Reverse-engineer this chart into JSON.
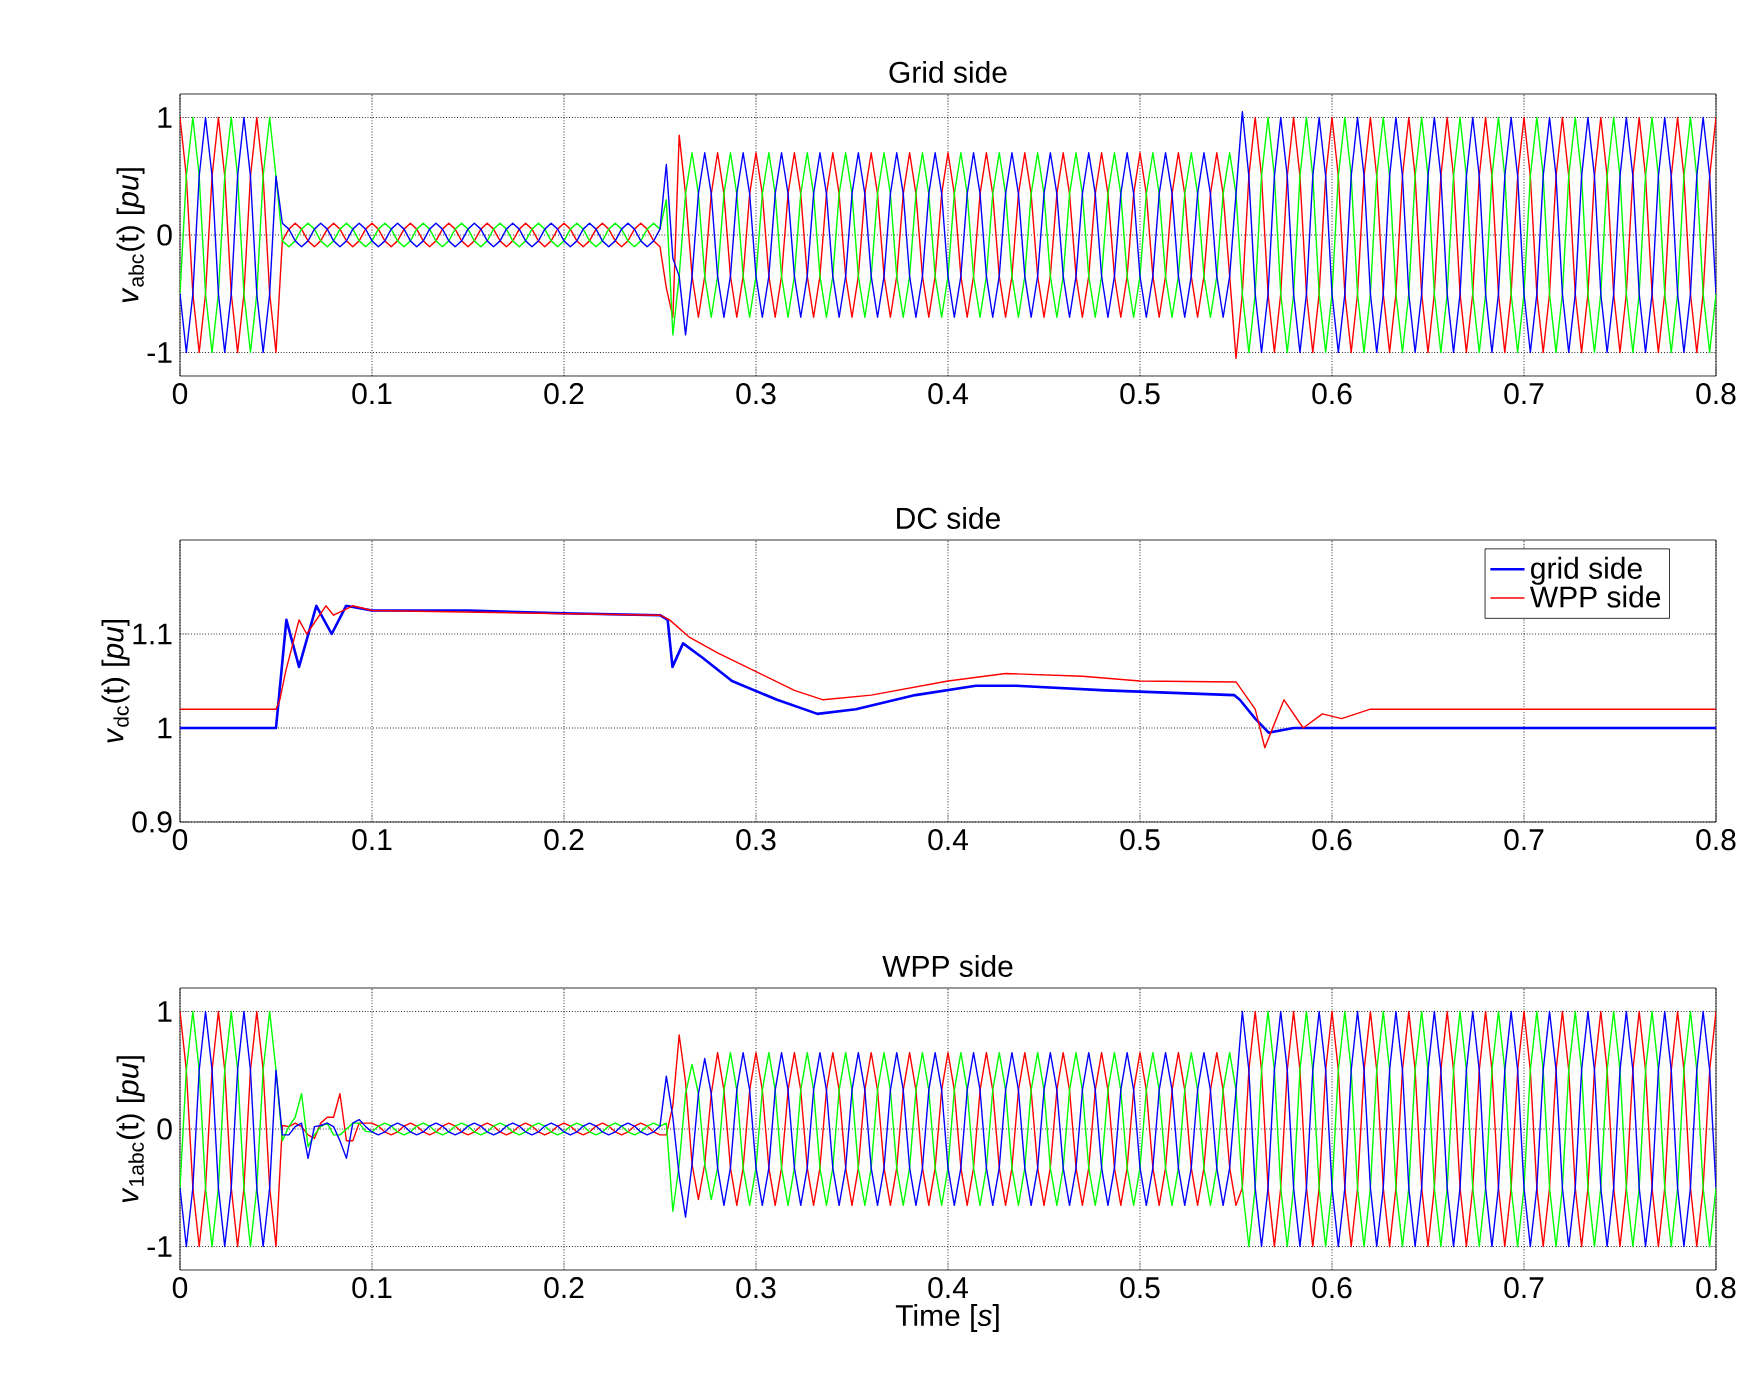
{
  "chart_data": [
    {
      "type": "line",
      "title": "Grid side",
      "ylabel": "*v*$_{abc}$(t) [*pu*]",
      "x": [
        0,
        0.0033,
        0.0067,
        0.01,
        0.0133,
        0.0167,
        0.02,
        0.0233,
        0.0267,
        0.03,
        0.0333,
        0.0367,
        0.04,
        0.0433,
        0.0467,
        0.05,
        0.0533,
        0.0567,
        0.06,
        0.0633,
        0.0667,
        0.07,
        0.0733,
        0.0767,
        0.08,
        0.0833,
        0.0867,
        0.09,
        0.0933,
        0.0967,
        0.1,
        0.1033,
        0.1067,
        0.11,
        0.1133,
        0.1167,
        0.12,
        0.1233,
        0.1267,
        0.13,
        0.1333,
        0.1367,
        0.14,
        0.1433,
        0.1467,
        0.15,
        0.1533,
        0.1567,
        0.16,
        0.1633,
        0.1667,
        0.17,
        0.1733,
        0.1767,
        0.18,
        0.1833,
        0.1867,
        0.19,
        0.1933,
        0.1967,
        0.2,
        0.2033,
        0.2067,
        0.21,
        0.2133,
        0.2167,
        0.22,
        0.2233,
        0.2267,
        0.23,
        0.2333,
        0.2367,
        0.24,
        0.2433,
        0.2467,
        0.25,
        0.2533,
        0.2567,
        0.26,
        0.2633,
        0.2667,
        0.27,
        0.2733,
        0.2767,
        0.28,
        0.2833,
        0.2867,
        0.29,
        0.2933,
        0.2967,
        0.3,
        0.3033,
        0.3067,
        0.31,
        0.3133,
        0.3167,
        0.32,
        0.3233,
        0.3267,
        0.33,
        0.3333,
        0.3367,
        0.34,
        0.3433,
        0.3467,
        0.35,
        0.3533,
        0.3567,
        0.36,
        0.3633,
        0.3667,
        0.37,
        0.3733,
        0.3767,
        0.38,
        0.3833,
        0.3867,
        0.39,
        0.3933,
        0.3967,
        0.4,
        0.4033,
        0.4067,
        0.41,
        0.4133,
        0.4167,
        0.42,
        0.4233,
        0.4267,
        0.43,
        0.4333,
        0.4367,
        0.44,
        0.4433,
        0.4467,
        0.45,
        0.4533,
        0.4567,
        0.46,
        0.4633,
        0.4667,
        0.47,
        0.4733,
        0.4767,
        0.48,
        0.4833,
        0.4867,
        0.49,
        0.4933,
        0.4967,
        0.5,
        0.5033,
        0.5067,
        0.51,
        0.5133,
        0.5167,
        0.52,
        0.5233,
        0.5267,
        0.53,
        0.5333,
        0.5367,
        0.54,
        0.5433,
        0.5467,
        0.55,
        0.5533,
        0.5567,
        0.56,
        0.5633,
        0.5667,
        0.57,
        0.5733,
        0.5767,
        0.58,
        0.5833,
        0.5867,
        0.59,
        0.5933,
        0.5967,
        0.6,
        0.6033,
        0.6067,
        0.61,
        0.6133,
        0.6167,
        0.62,
        0.6233,
        0.6267,
        0.63,
        0.6333,
        0.6367,
        0.64,
        0.6433,
        0.6467,
        0.65,
        0.6533,
        0.6567,
        0.66,
        0.6633,
        0.6667,
        0.67,
        0.6733,
        0.6767,
        0.68,
        0.6833,
        0.6867,
        0.69,
        0.6933,
        0.6967,
        0.7,
        0.7033,
        0.7067,
        0.71,
        0.7133,
        0.7167,
        0.72,
        0.7233,
        0.7267,
        0.73,
        0.7333,
        0.7367,
        0.74,
        0.7433,
        0.7467,
        0.75,
        0.7533,
        0.7567,
        0.76,
        0.7633,
        0.7667,
        0.77,
        0.7733,
        0.7767,
        0.78,
        0.7833,
        0.7867,
        0.79,
        0.7933,
        0.7967,
        0.8
      ],
      "series": [
        {
          "color": "#ff0000",
          "values": [
            1,
            0.5,
            -0.5,
            -1,
            -0.5,
            0.5,
            1,
            0.5,
            -0.5,
            -1,
            -0.5,
            0.5,
            1,
            0.5,
            -0.5,
            -1,
            -0.05,
            0.05,
            0.1,
            0.05,
            -0.05,
            -0.1,
            -0.05,
            0.05,
            0.1,
            0.05,
            -0.05,
            -0.1,
            -0.05,
            0.05,
            0.1,
            0.05,
            -0.05,
            -0.1,
            -0.05,
            0.05,
            0.1,
            0.05,
            -0.05,
            -0.1,
            -0.05,
            0.05,
            0.1,
            0.05,
            -0.05,
            -0.1,
            -0.05,
            0.05,
            0.1,
            0.05,
            -0.05,
            -0.1,
            -0.05,
            0.05,
            0.1,
            0.05,
            -0.05,
            -0.1,
            -0.05,
            0.05,
            0.1,
            0.05,
            -0.05,
            -0.1,
            -0.05,
            0.05,
            0.1,
            0.05,
            -0.05,
            -0.1,
            -0.05,
            0.05,
            0.1,
            0.05,
            -0.05,
            -0.1,
            -0.45,
            -0.7,
            0.85,
            0.35,
            -0.35,
            -0.7,
            -0.35,
            0.35,
            0.7,
            0.35,
            -0.35,
            -0.7,
            -0.35,
            0.35,
            0.7,
            0.35,
            -0.35,
            -0.7,
            -0.35,
            0.35,
            0.7,
            0.35,
            -0.35,
            -0.7,
            -0.35,
            0.35,
            0.7,
            0.35,
            -0.35,
            -0.7,
            -0.35,
            0.35,
            0.7,
            0.35,
            -0.35,
            -0.7,
            -0.35,
            0.35,
            0.7,
            0.35,
            -0.35,
            -0.7,
            -0.35,
            0.35,
            0.7,
            0.35,
            -0.35,
            -0.7,
            -0.35,
            0.35,
            0.7,
            0.35,
            -0.35,
            -0.7,
            -0.35,
            0.35,
            0.7,
            0.35,
            -0.35,
            -0.7,
            -0.35,
            0.35,
            0.7,
            0.35,
            -0.35,
            -0.7,
            -0.35,
            0.35,
            0.7,
            0.35,
            -0.35,
            -0.7,
            -0.35,
            0.35,
            0.7,
            0.35,
            -0.35,
            -0.7,
            -0.35,
            0.35,
            0.7,
            0.35,
            -0.35,
            -0.7,
            -0.35,
            0.35,
            0.7,
            0.35,
            -0.35,
            -1.05,
            -0.5,
            0.5,
            1,
            0.5,
            -0.5,
            -1,
            -0.5,
            0.5,
            1,
            0.5,
            -0.5,
            -1,
            -0.5,
            0.5,
            1,
            0.5,
            -0.5,
            -1,
            -0.5,
            0.5,
            1,
            0.5,
            -0.5,
            -1,
            -0.5,
            0.5,
            1,
            0.5,
            -0.5,
            -1,
            -0.5,
            0.5,
            1,
            0.5,
            -0.5,
            -1,
            -0.5,
            0.5,
            1,
            0.5,
            -0.5,
            -1,
            -0.5,
            0.5,
            1,
            0.5,
            -0.5,
            -1,
            -0.5,
            0.5,
            1,
            0.5,
            -0.5,
            -1,
            -0.5,
            0.5,
            1,
            0.5,
            -0.5,
            -1,
            -0.5,
            0.5,
            1,
            0.5,
            -0.5,
            -1,
            -0.5,
            0.5,
            1,
            0.5,
            -0.5,
            -1,
            -0.5,
            0.5,
            1
          ]
        },
        {
          "color": "#00ff00",
          "values": [
            -0.5,
            0.5,
            1,
            0.5,
            -0.5,
            -1,
            -0.5,
            0.5,
            1,
            0.5,
            -0.5,
            -1,
            -0.5,
            0.5,
            1,
            0.5,
            -0.05,
            -0.1,
            -0.05,
            0.05,
            0.1,
            0.05,
            -0.05,
            -0.1,
            -0.05,
            0.05,
            0.1,
            0.05,
            -0.05,
            -0.1,
            -0.05,
            0.05,
            0.1,
            0.05,
            -0.05,
            -0.1,
            -0.05,
            0.05,
            0.1,
            0.05,
            -0.05,
            -0.1,
            -0.05,
            0.05,
            0.1,
            0.05,
            -0.05,
            -0.1,
            -0.05,
            0.05,
            0.1,
            0.05,
            -0.05,
            -0.1,
            -0.05,
            0.05,
            0.1,
            0.05,
            -0.05,
            -0.1,
            -0.05,
            0.05,
            0.1,
            0.05,
            -0.05,
            -0.1,
            -0.05,
            0.05,
            0.1,
            0.05,
            -0.05,
            -0.1,
            -0.05,
            0.05,
            0.1,
            0.05,
            0.3,
            -0.85,
            -0.35,
            0.35,
            0.7,
            0.35,
            -0.35,
            -0.7,
            -0.35,
            0.35,
            0.7,
            0.35,
            -0.35,
            -0.7,
            -0.35,
            0.35,
            0.7,
            0.35,
            -0.35,
            -0.7,
            -0.35,
            0.35,
            0.7,
            0.35,
            -0.35,
            -0.7,
            -0.35,
            0.35,
            0.7,
            0.35,
            -0.35,
            -0.7,
            -0.35,
            0.35,
            0.7,
            0.35,
            -0.35,
            -0.7,
            -0.35,
            0.35,
            0.7,
            0.35,
            -0.35,
            -0.7,
            -0.35,
            0.35,
            0.7,
            0.35,
            -0.35,
            -0.7,
            -0.35,
            0.35,
            0.7,
            0.35,
            -0.35,
            -0.7,
            -0.35,
            0.35,
            0.7,
            0.35,
            -0.35,
            -0.7,
            -0.35,
            0.35,
            0.7,
            0.35,
            -0.35,
            -0.7,
            -0.35,
            0.35,
            0.7,
            0.35,
            -0.35,
            -0.7,
            -0.35,
            0.35,
            0.7,
            0.35,
            -0.35,
            -0.7,
            -0.35,
            0.35,
            0.7,
            0.35,
            -0.35,
            -0.7,
            -0.35,
            0.35,
            0.7,
            0.35,
            -0.5,
            -1,
            -0.5,
            0.5,
            1,
            0.5,
            -0.5,
            -1,
            -0.5,
            0.5,
            1,
            0.5,
            -0.5,
            -1,
            -0.5,
            0.5,
            1,
            0.5,
            -0.5,
            -1,
            -0.5,
            0.5,
            1,
            0.5,
            -0.5,
            -1,
            -0.5,
            0.5,
            1,
            0.5,
            -0.5,
            -1,
            -0.5,
            0.5,
            1,
            0.5,
            -0.5,
            -1,
            -0.5,
            0.5,
            1,
            0.5,
            -0.5,
            -1,
            -0.5,
            0.5,
            1,
            0.5,
            -0.5,
            -1,
            -0.5,
            0.5,
            1,
            0.5,
            -0.5,
            -1,
            -0.5,
            0.5,
            1,
            0.5,
            -0.5,
            -1,
            -0.5,
            0.5,
            1,
            0.5,
            -0.5,
            -1,
            -0.5,
            0.5,
            1,
            0.5,
            -0.5,
            -1,
            -0.5
          ]
        },
        {
          "color": "#0000ff",
          "values": [
            -0.5,
            -1,
            -0.5,
            0.5,
            1,
            0.5,
            -0.5,
            -1,
            -0.5,
            0.5,
            1,
            0.5,
            -0.5,
            -1,
            -0.5,
            0.5,
            0.1,
            0.05,
            -0.05,
            -0.1,
            -0.05,
            0.05,
            0.1,
            0.05,
            -0.05,
            -0.1,
            -0.05,
            0.05,
            0.1,
            0.05,
            -0.05,
            -0.1,
            -0.05,
            0.05,
            0.1,
            0.05,
            -0.05,
            -0.1,
            -0.05,
            0.05,
            0.1,
            0.05,
            -0.05,
            -0.1,
            -0.05,
            0.05,
            0.1,
            0.05,
            -0.05,
            -0.1,
            -0.05,
            0.05,
            0.1,
            0.05,
            -0.05,
            -0.1,
            -0.05,
            0.05,
            0.1,
            0.05,
            -0.05,
            -0.1,
            -0.05,
            0.05,
            0.1,
            0.05,
            -0.05,
            -0.1,
            -0.05,
            0.05,
            0.1,
            0.05,
            -0.05,
            -0.1,
            -0.05,
            0.05,
            0.6,
            -0.2,
            -0.35,
            -0.85,
            -0.35,
            0.35,
            0.7,
            0.35,
            -0.35,
            -0.7,
            -0.35,
            0.35,
            0.7,
            0.35,
            -0.35,
            -0.7,
            -0.35,
            0.35,
            0.7,
            0.35,
            -0.35,
            -0.7,
            -0.35,
            0.35,
            0.7,
            0.35,
            -0.35,
            -0.7,
            -0.35,
            0.35,
            0.7,
            0.35,
            -0.35,
            -0.7,
            -0.35,
            0.35,
            0.7,
            0.35,
            -0.35,
            -0.7,
            -0.35,
            0.35,
            0.7,
            0.35,
            -0.35,
            -0.7,
            -0.35,
            0.35,
            0.7,
            0.35,
            -0.35,
            -0.7,
            -0.35,
            0.35,
            0.7,
            0.35,
            -0.35,
            -0.7,
            -0.35,
            0.35,
            0.7,
            0.35,
            -0.35,
            -0.7,
            -0.35,
            0.35,
            0.7,
            0.35,
            -0.35,
            -0.7,
            -0.35,
            0.35,
            0.7,
            0.35,
            -0.35,
            -0.7,
            -0.35,
            0.35,
            0.7,
            0.35,
            -0.35,
            -0.7,
            -0.35,
            0.35,
            0.7,
            0.35,
            -0.35,
            -0.7,
            -0.35,
            0.35,
            1.05,
            0.5,
            -0.5,
            -1,
            -0.5,
            0.5,
            1,
            0.5,
            -0.5,
            -1,
            -0.5,
            0.5,
            1,
            0.5,
            -0.5,
            -1,
            -0.5,
            0.5,
            1,
            0.5,
            -0.5,
            -1,
            -0.5,
            0.5,
            1,
            0.5,
            -0.5,
            -1,
            -0.5,
            0.5,
            1,
            0.5,
            -0.5,
            -1,
            -0.5,
            0.5,
            1,
            0.5,
            -0.5,
            -1,
            -0.5,
            0.5,
            1,
            0.5,
            -0.5,
            -1,
            -0.5,
            0.5,
            1,
            0.5,
            -0.5,
            -1,
            -0.5,
            0.5,
            1,
            0.5,
            -0.5,
            -1,
            -0.5,
            0.5,
            1,
            0.5,
            -0.5,
            -1,
            -0.5,
            0.5,
            1,
            0.5,
            -0.5,
            -1,
            -0.5,
            0.5,
            1,
            0.5,
            -0.5
          ]
        }
      ],
      "xlim": [
        0,
        0.8
      ],
      "ylim": [
        -1.2,
        1.2
      ],
      "xticks": [
        0,
        0.1,
        0.2,
        0.3,
        0.4,
        0.5,
        0.6,
        0.7,
        0.8
      ],
      "yticks": [
        -1,
        0,
        1
      ],
      "grid": true
    },
    {
      "type": "line",
      "title": "DC side",
      "ylabel": "*v*$_{dc}$(t) [*pu*]",
      "series": [
        {
          "name": "grid side",
          "color": "#0000ff",
          "x": [
            0,
            0.05,
            0.0554,
            0.062,
            0.071,
            0.079,
            0.0865,
            0.1,
            0.15,
            0.2,
            0.25,
            0.254,
            0.2565,
            0.262,
            0.272,
            0.2875,
            0.311,
            0.332,
            0.352,
            0.383,
            0.4145,
            0.435,
            0.482,
            0.549,
            0.552,
            0.56,
            0.567,
            0.58,
            0.6,
            0.7,
            0.8
          ],
          "values": [
            1,
            1,
            1.115,
            1.065,
            1.13,
            1.1,
            1.13,
            1.125,
            1.125,
            1.122,
            1.12,
            1.115,
            1.065,
            1.09,
            1.075,
            1.05,
            1.03,
            1.015,
            1.02,
            1.035,
            1.045,
            1.045,
            1.04,
            1.035,
            1.03,
            1.01,
            0.995,
            1,
            1,
            1,
            1
          ]
        },
        {
          "name": "WPP side",
          "color": "#ff0000",
          "x": [
            0,
            0.05,
            0.052,
            0.055,
            0.062,
            0.066,
            0.076,
            0.08,
            0.09,
            0.1,
            0.25,
            0.255,
            0.265,
            0.28,
            0.3,
            0.32,
            0.335,
            0.36,
            0.4,
            0.43,
            0.47,
            0.5,
            0.55,
            0.56,
            0.565,
            0.575,
            0.585,
            0.595,
            0.605,
            0.62,
            0.8
          ],
          "values": [
            1.02,
            1.02,
            1.03,
            1.06,
            1.115,
            1.1,
            1.13,
            1.12,
            1.13,
            1.125,
            1.12,
            1.115,
            1.097,
            1.08,
            1.06,
            1.04,
            1.03,
            1.035,
            1.05,
            1.058,
            1.055,
            1.05,
            1.049,
            1.02,
            0.979,
            1.03,
            1,
            1.015,
            1.01,
            1.02,
            1.02
          ]
        }
      ],
      "xlim": [
        0,
        0.8
      ],
      "ylim": [
        0.9,
        1.2
      ],
      "xticks": [
        0,
        0.1,
        0.2,
        0.3,
        0.4,
        0.5,
        0.6,
        0.7,
        0.8
      ],
      "yticks": [
        0.9,
        1,
        1.1
      ],
      "grid": true,
      "legend": "top right"
    },
    {
      "type": "line",
      "title": "WPP side",
      "ylabel": "*v*$_{1abc}$(t) [*pu*]",
      "xlabel": "Time [*s*]",
      "x": [
        0,
        0.0033,
        0.0067,
        0.01,
        0.0133,
        0.0167,
        0.02,
        0.0233,
        0.0267,
        0.03,
        0.0333,
        0.0367,
        0.04,
        0.0433,
        0.0467,
        0.05,
        0.0533,
        0.0567,
        0.06,
        0.0633,
        0.0667,
        0.07,
        0.0733,
        0.0767,
        0.08,
        0.0833,
        0.0867,
        0.09,
        0.0933,
        0.0967,
        0.1,
        0.1033,
        0.1067,
        0.11,
        0.1133,
        0.1167,
        0.12,
        0.1233,
        0.1267,
        0.13,
        0.1333,
        0.1367,
        0.14,
        0.1433,
        0.1467,
        0.15,
        0.1533,
        0.1567,
        0.16,
        0.1633,
        0.1667,
        0.17,
        0.1733,
        0.1767,
        0.18,
        0.1833,
        0.1867,
        0.19,
        0.1933,
        0.1967,
        0.2,
        0.2033,
        0.2067,
        0.21,
        0.2133,
        0.2167,
        0.22,
        0.2233,
        0.2267,
        0.23,
        0.2333,
        0.2367,
        0.24,
        0.2433,
        0.2467,
        0.25,
        0.2533,
        0.2567,
        0.26,
        0.2633,
        0.2667,
        0.27,
        0.2733,
        0.2767,
        0.28,
        0.2833,
        0.2867,
        0.29,
        0.2933,
        0.2967,
        0.3,
        0.3033,
        0.3067,
        0.31,
        0.3133,
        0.3167,
        0.32,
        0.3233,
        0.3267,
        0.33,
        0.3333,
        0.3367,
        0.34,
        0.3433,
        0.3467,
        0.35,
        0.3533,
        0.3567,
        0.36,
        0.3633,
        0.3667,
        0.37,
        0.3733,
        0.3767,
        0.38,
        0.3833,
        0.3867,
        0.39,
        0.3933,
        0.3967,
        0.4,
        0.4033,
        0.4067,
        0.41,
        0.4133,
        0.4167,
        0.42,
        0.4233,
        0.4267,
        0.43,
        0.4333,
        0.4367,
        0.44,
        0.4433,
        0.4467,
        0.45,
        0.4533,
        0.4567,
        0.46,
        0.4633,
        0.4667,
        0.47,
        0.4733,
        0.4767,
        0.48,
        0.4833,
        0.4867,
        0.49,
        0.4933,
        0.4967,
        0.5,
        0.5033,
        0.5067,
        0.51,
        0.5133,
        0.5167,
        0.52,
        0.5233,
        0.5267,
        0.53,
        0.5333,
        0.5367,
        0.54,
        0.5433,
        0.5467,
        0.55,
        0.5533,
        0.5567,
        0.56,
        0.5633,
        0.5667,
        0.57,
        0.5733,
        0.5767,
        0.58,
        0.5833,
        0.5867,
        0.59,
        0.5933,
        0.5967,
        0.6,
        0.6033,
        0.6067,
        0.61,
        0.6133,
        0.6167,
        0.62,
        0.6233,
        0.6267,
        0.63,
        0.6333,
        0.6367,
        0.64,
        0.6433,
        0.6467,
        0.65,
        0.6533,
        0.6567,
        0.66,
        0.6633,
        0.6667,
        0.67,
        0.6733,
        0.6767,
        0.68,
        0.6833,
        0.6867,
        0.69,
        0.6933,
        0.6967,
        0.7,
        0.7033,
        0.7067,
        0.71,
        0.7133,
        0.7167,
        0.72,
        0.7233,
        0.7267,
        0.73,
        0.7333,
        0.7367,
        0.74,
        0.7433,
        0.7467,
        0.75,
        0.7533,
        0.7567,
        0.76,
        0.7633,
        0.7667,
        0.77,
        0.7733,
        0.7767,
        0.78,
        0.7833,
        0.7867,
        0.79,
        0.7933,
        0.7967,
        0.8
      ],
      "series": [
        {
          "color": "#ff0000",
          "values": [
            1,
            0.5,
            -0.5,
            -1,
            -0.5,
            0.5,
            1,
            0.5,
            -0.5,
            -1,
            -0.5,
            0.5,
            1,
            0.5,
            -0.5,
            -1,
            0.03,
            0.02,
            0.05,
            0.02,
            -0.05,
            -0.08,
            0.05,
            0.1,
            0.1,
            0.3,
            -0.1,
            -0.1,
            0.05,
            0.05,
            0.05,
            0.025,
            -0.025,
            -0.05,
            -0.025,
            0.025,
            0.05,
            0.025,
            -0.025,
            -0.05,
            -0.025,
            0.025,
            0.05,
            0.025,
            -0.025,
            -0.05,
            -0.025,
            0.025,
            0.05,
            0.025,
            -0.025,
            -0.05,
            -0.025,
            0.025,
            0.05,
            0.025,
            -0.025,
            -0.05,
            -0.025,
            0.025,
            0.05,
            0.025,
            -0.025,
            -0.05,
            -0.025,
            0.025,
            0.05,
            0.025,
            -0.025,
            -0.05,
            -0.025,
            0.025,
            0.05,
            0.025,
            -0.025,
            -0.05,
            -0.05,
            0.2,
            0.8,
            0.4,
            -0.3,
            -0.6,
            -0.3,
            0.3,
            0.65,
            0.33,
            -0.33,
            -0.65,
            -0.33,
            0.33,
            0.65,
            0.33,
            -0.33,
            -0.65,
            -0.33,
            0.33,
            0.65,
            0.33,
            -0.33,
            -0.65,
            -0.33,
            0.33,
            0.65,
            0.33,
            -0.33,
            -0.65,
            -0.33,
            0.33,
            0.65,
            0.33,
            -0.33,
            -0.65,
            -0.33,
            0.33,
            0.65,
            0.33,
            -0.33,
            -0.65,
            -0.33,
            0.33,
            0.65,
            0.33,
            -0.33,
            -0.65,
            -0.33,
            0.33,
            0.65,
            0.33,
            -0.33,
            -0.65,
            -0.33,
            0.33,
            0.65,
            0.33,
            -0.33,
            -0.65,
            -0.33,
            0.33,
            0.65,
            0.33,
            -0.33,
            -0.65,
            -0.33,
            0.33,
            0.65,
            0.33,
            -0.33,
            -0.65,
            -0.33,
            0.33,
            0.65,
            0.33,
            -0.33,
            -0.65,
            -0.33,
            0.33,
            0.65,
            0.33,
            -0.33,
            -0.65,
            -0.33,
            0.33,
            0.65,
            0.33,
            -0.33,
            -0.65,
            -0.5,
            0.5,
            1,
            0.5,
            -0.5,
            -1,
            -0.5,
            0.5,
            1,
            0.5,
            -0.5,
            -1,
            -0.5,
            0.5,
            1,
            0.5,
            -0.5,
            -1,
            -0.5,
            0.5,
            1,
            0.5,
            -0.5,
            -1,
            -0.5,
            0.5,
            1,
            0.5,
            -0.5,
            -1,
            -0.5,
            0.5,
            1,
            0.5,
            -0.5,
            -1,
            -0.5,
            0.5,
            1,
            0.5,
            -0.5,
            -1,
            -0.5,
            0.5,
            1,
            0.5,
            -0.5,
            -1,
            -0.5,
            0.5,
            1,
            0.5,
            -0.5,
            -1,
            -0.5,
            0.5,
            1,
            0.5,
            -0.5,
            -1,
            -0.5,
            0.5,
            1,
            0.5,
            -0.5,
            -1,
            -0.5,
            0.5,
            1,
            0.5,
            -0.5,
            -1,
            -0.5,
            0.5,
            1
          ]
        },
        {
          "color": "#00ff00",
          "values": [
            -0.5,
            0.5,
            1,
            0.5,
            -0.5,
            -1,
            -0.5,
            0.5,
            1,
            0.5,
            -0.5,
            -1,
            -0.5,
            0.5,
            1,
            0.5,
            -0.1,
            0.02,
            0.1,
            0.3,
            -0.15,
            -0.05,
            0.02,
            0.05,
            -0.05,
            -0.05,
            0,
            0.05,
            0.05,
            -0.02,
            -0.025,
            0.025,
            0.05,
            0.025,
            -0.025,
            -0.05,
            -0.025,
            0.025,
            0.05,
            0.025,
            -0.025,
            -0.05,
            -0.025,
            0.025,
            0.05,
            0.025,
            -0.025,
            -0.05,
            -0.025,
            0.025,
            0.05,
            0.025,
            -0.025,
            -0.05,
            -0.025,
            0.025,
            0.05,
            0.025,
            -0.025,
            -0.05,
            -0.025,
            0.025,
            0.05,
            0.025,
            -0.025,
            -0.05,
            -0.025,
            0.025,
            0.05,
            0.025,
            -0.025,
            -0.05,
            -0.025,
            0.025,
            0.05,
            0.025,
            0.05,
            -0.7,
            -0.3,
            0.3,
            0.55,
            0.3,
            -0.3,
            -0.6,
            -0.33,
            0.33,
            0.65,
            0.33,
            -0.33,
            -0.65,
            -0.33,
            0.33,
            0.65,
            0.33,
            -0.33,
            -0.65,
            -0.33,
            0.33,
            0.65,
            0.33,
            -0.33,
            -0.65,
            -0.33,
            0.33,
            0.65,
            0.33,
            -0.33,
            -0.65,
            -0.33,
            0.33,
            0.65,
            0.33,
            -0.33,
            -0.65,
            -0.33,
            0.33,
            0.65,
            0.33,
            -0.33,
            -0.65,
            -0.33,
            0.33,
            0.65,
            0.33,
            -0.33,
            -0.65,
            -0.33,
            0.33,
            0.65,
            0.33,
            -0.33,
            -0.65,
            -0.33,
            0.33,
            0.65,
            0.33,
            -0.33,
            -0.65,
            -0.33,
            0.33,
            0.65,
            0.33,
            -0.33,
            -0.65,
            -0.33,
            0.33,
            0.65,
            0.33,
            -0.33,
            -0.65,
            -0.33,
            0.33,
            0.65,
            0.33,
            -0.33,
            -0.65,
            -0.33,
            0.33,
            0.65,
            0.33,
            -0.33,
            -0.65,
            -0.33,
            0.33,
            0.65,
            0.33,
            -0.5,
            -1,
            -0.5,
            0.5,
            1,
            0.5,
            -0.5,
            -1,
            -0.5,
            0.5,
            1,
            0.5,
            -0.5,
            -1,
            -0.5,
            0.5,
            1,
            0.5,
            -0.5,
            -1,
            -0.5,
            0.5,
            1,
            0.5,
            -0.5,
            -1,
            -0.5,
            0.5,
            1,
            0.5,
            -0.5,
            -1,
            -0.5,
            0.5,
            1,
            0.5,
            -0.5,
            -1,
            -0.5,
            0.5,
            1,
            0.5,
            -0.5,
            -1,
            -0.5,
            0.5,
            1,
            0.5,
            -0.5,
            -1,
            -0.5,
            0.5,
            1,
            0.5,
            -0.5,
            -1,
            -0.5,
            0.5,
            1,
            0.5,
            -0.5,
            -1,
            -0.5,
            0.5,
            1,
            0.5,
            -0.5,
            -1,
            -0.5,
            0.5,
            1,
            0.5,
            -0.5,
            -1,
            -0.5
          ]
        },
        {
          "color": "#0000ff",
          "values": [
            -0.5,
            -1,
            -0.5,
            0.5,
            1,
            0.5,
            -0.5,
            -1,
            -0.5,
            0.5,
            1,
            0.5,
            -0.5,
            -1,
            -0.5,
            0.5,
            -0.05,
            -0.05,
            0.02,
            0.05,
            -0.25,
            0.02,
            0.03,
            0.05,
            0.02,
            -0.1,
            -0.25,
            0.05,
            0.08,
            0.02,
            -0.025,
            -0.05,
            -0.025,
            0.025,
            0.05,
            0.025,
            -0.025,
            -0.05,
            -0.025,
            0.025,
            0.05,
            0.025,
            -0.025,
            -0.05,
            -0.025,
            0.025,
            0.05,
            0.025,
            -0.025,
            -0.05,
            -0.025,
            0.025,
            0.05,
            0.025,
            -0.025,
            -0.05,
            -0.025,
            0.025,
            0.05,
            0.025,
            -0.025,
            -0.05,
            -0.025,
            0.025,
            0.05,
            0.025,
            -0.025,
            -0.05,
            -0.025,
            0.025,
            0.05,
            0.025,
            -0.025,
            -0.05,
            -0.025,
            0.025,
            0.45,
            0.1,
            -0.4,
            -0.75,
            -0.3,
            0.3,
            0.6,
            0.3,
            -0.33,
            -0.65,
            -0.33,
            0.33,
            0.65,
            0.33,
            -0.33,
            -0.65,
            -0.33,
            0.33,
            0.65,
            0.33,
            -0.33,
            -0.65,
            -0.33,
            0.33,
            0.65,
            0.33,
            -0.33,
            -0.65,
            -0.33,
            0.33,
            0.65,
            0.33,
            -0.33,
            -0.65,
            -0.33,
            0.33,
            0.65,
            0.33,
            -0.33,
            -0.65,
            -0.33,
            0.33,
            0.65,
            0.33,
            -0.33,
            -0.65,
            -0.33,
            0.33,
            0.65,
            0.33,
            -0.33,
            -0.65,
            -0.33,
            0.33,
            0.65,
            0.33,
            -0.33,
            -0.65,
            -0.33,
            0.33,
            0.65,
            0.33,
            -0.33,
            -0.65,
            -0.33,
            0.33,
            0.65,
            0.33,
            -0.33,
            -0.65,
            -0.33,
            0.33,
            0.65,
            0.33,
            -0.33,
            -0.65,
            -0.33,
            0.33,
            0.65,
            0.33,
            -0.33,
            -0.65,
            -0.33,
            0.33,
            0.65,
            0.33,
            -0.33,
            -0.65,
            -0.33,
            0.33,
            1,
            0.5,
            -0.5,
            -1,
            -0.5,
            0.5,
            1,
            0.5,
            -0.5,
            -1,
            -0.5,
            0.5,
            1,
            0.5,
            -0.5,
            -1,
            -0.5,
            0.5,
            1,
            0.5,
            -0.5,
            -1,
            -0.5,
            0.5,
            1,
            0.5,
            -0.5,
            -1,
            -0.5,
            0.5,
            1,
            0.5,
            -0.5,
            -1,
            -0.5,
            0.5,
            1,
            0.5,
            -0.5,
            -1,
            -0.5,
            0.5,
            1,
            0.5,
            -0.5,
            -1,
            -0.5,
            0.5,
            1,
            0.5,
            -0.5,
            -1,
            -0.5,
            0.5,
            1,
            0.5,
            -0.5,
            -1,
            -0.5,
            0.5,
            1,
            0.5,
            -0.5,
            -1,
            -0.5,
            0.5,
            1,
            0.5,
            -0.5,
            -1,
            -0.5,
            0.5,
            1,
            0.5,
            -0.5
          ]
        }
      ],
      "xlim": [
        0,
        0.8
      ],
      "ylim": [
        -1.2,
        1.2
      ],
      "xticks": [
        0,
        0.1,
        0.2,
        0.3,
        0.4,
        0.5,
        0.6,
        0.7,
        0.8
      ],
      "yticks": [
        -1,
        0,
        1
      ],
      "grid": true
    }
  ]
}
